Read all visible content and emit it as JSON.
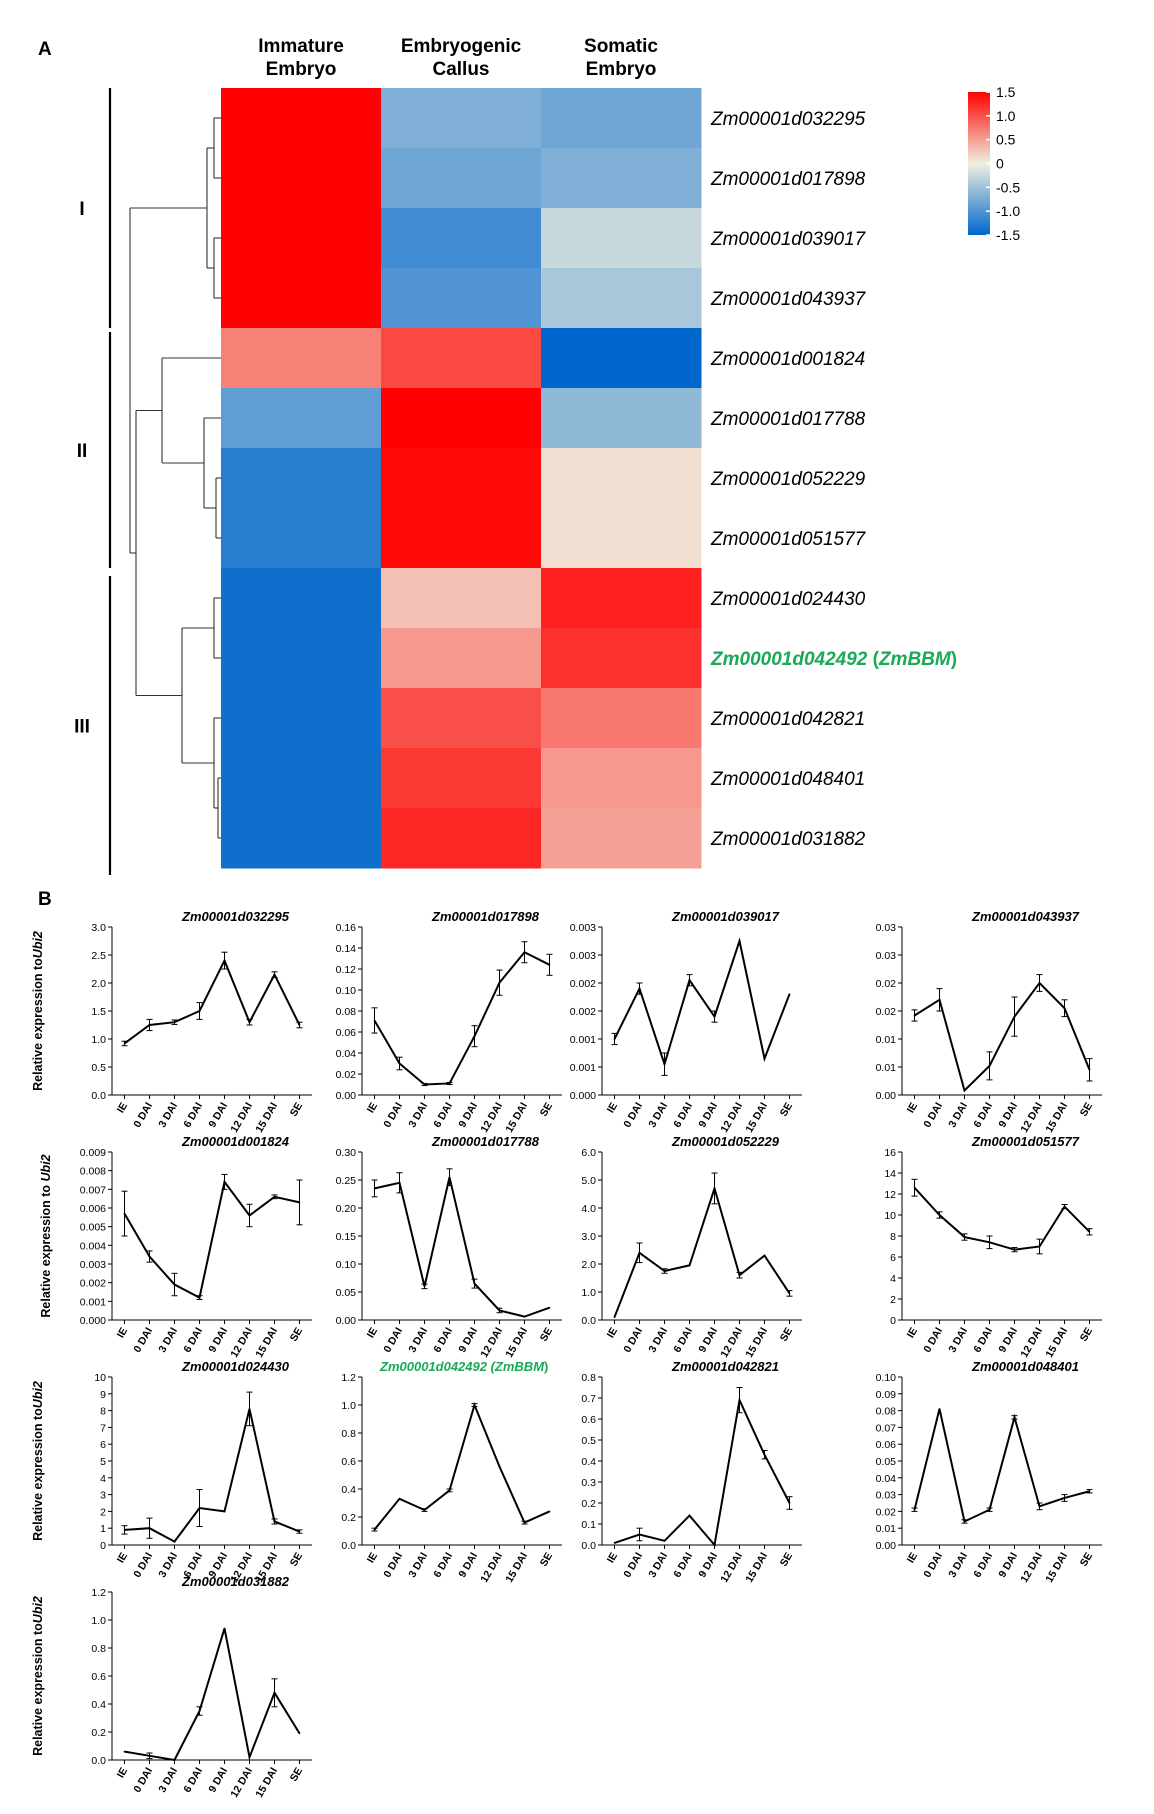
{
  "panel_a_label": "A",
  "panel_b_label": "B",
  "chart_data": [
    {
      "type": "heatmap",
      "columns": [
        "Immature\nEmbryo",
        "Embryogenic\nCallus",
        "Somatic\nEmbryo"
      ],
      "rows": [
        "Zm00001d032295",
        "Zm00001d017898",
        "Zm00001d039017",
        "Zm00001d043937",
        "Zm00001d001824",
        "Zm00001d017788",
        "Zm00001d052229",
        "Zm00001d051577",
        "Zm00001d024430",
        "Zm00001d042492",
        "Zm00001d042821",
        "Zm00001d048401",
        "Zm00001d031882"
      ],
      "highlight_row": {
        "index": 9,
        "suffix_open": " (",
        "suffix_gene": "ZmBBM",
        "suffix_close": ")",
        "color": "#1aaa55"
      },
      "values": [
        [
          1.5,
          -0.7,
          -0.8
        ],
        [
          1.5,
          -0.8,
          -0.7
        ],
        [
          1.5,
          -1.1,
          -0.25
        ],
        [
          1.5,
          -1.0,
          -0.45
        ],
        [
          0.7,
          1.05,
          -1.5
        ],
        [
          -0.9,
          1.5,
          -0.6
        ],
        [
          -1.25,
          1.45,
          0.1
        ],
        [
          -1.25,
          1.45,
          0.1
        ],
        [
          -1.4,
          0.3,
          1.3
        ],
        [
          -1.4,
          0.55,
          1.2
        ],
        [
          -1.4,
          1.0,
          0.75
        ],
        [
          -1.4,
          1.15,
          0.55
        ],
        [
          -1.4,
          1.25,
          0.5
        ]
      ],
      "clusters": [
        "I",
        "II",
        "III"
      ],
      "colorbar": {
        "min": -1.5,
        "max": 1.5,
        "ticks": [
          "1.5",
          "1.0",
          "0.5",
          "0",
          "-0.5",
          "-1.0",
          "-1.5"
        ]
      },
      "colors": {
        "low": "#0066cc",
        "mid": "#f0f0e0",
        "high": "#ff0000"
      }
    },
    {
      "type": "line",
      "x": [
        "IE",
        "0 DAI",
        "3 DAI",
        "6 DAI",
        "9 DAI",
        "12 DAI",
        "15 DAI",
        "SE"
      ],
      "ylabel": "Relative expression to Ubi2",
      "panels": [
        {
          "title": "Zm00001d032295",
          "ylabel": "Relative expression to\nUbi2",
          "yticks": [
            "0.0",
            "0.5",
            "1.0",
            "1.5",
            "2.0",
            "2.5",
            "3.0"
          ],
          "ymax": 3.0,
          "values": [
            0.92,
            1.25,
            1.3,
            1.5,
            2.4,
            1.3,
            2.15,
            1.25
          ],
          "errors": [
            0.04,
            0.1,
            0.04,
            0.15,
            0.15,
            0.05,
            0.05,
            0.05
          ]
        },
        {
          "title": "Zm00001d017898",
          "yticks": [
            "0.00",
            "0.02",
            "0.04",
            "0.06",
            "0.08",
            "0.10",
            "0.12",
            "0.14",
            "0.16"
          ],
          "ymax": 0.16,
          "values": [
            0.071,
            0.03,
            0.01,
            0.011,
            0.056,
            0.107,
            0.136,
            0.124
          ],
          "errors": [
            0.012,
            0.006,
            0.001,
            0.001,
            0.01,
            0.012,
            0.01,
            0.01
          ]
        },
        {
          "title": "Zm00001d039017",
          "yticks": [
            "0.000",
            "0.001",
            "0.001",
            "0.002",
            "0.002",
            "0.003",
            "0.003"
          ],
          "ymax": 0.003,
          "values": [
            0.001,
            0.0019,
            0.00055,
            0.00205,
            0.0014,
            0.00275,
            0.00065,
            0.0018
          ],
          "errors": [
            0.0001,
            0.0001,
            0.0002,
            0.0001,
            0.0001,
            0.0,
            0.0,
            0.0
          ]
        },
        {
          "title": "Zm00001d043937",
          "yticks": [
            "0.00",
            "0.01",
            "0.01",
            "0.02",
            "0.02",
            "0.03",
            "0.03"
          ],
          "ymax": 0.03,
          "values": [
            0.0142,
            0.017,
            0.0008,
            0.0052,
            0.014,
            0.02,
            0.0155,
            0.0045
          ],
          "errors": [
            0.001,
            0.002,
            0.0,
            0.0025,
            0.0035,
            0.0015,
            0.0015,
            0.002
          ]
        },
        {
          "title": "Zm00001d001824",
          "ylabel": "Relative expression to Ubi2",
          "yticks": [
            "0.000",
            "0.001",
            "0.002",
            "0.003",
            "0.004",
            "0.005",
            "0.006",
            "0.007",
            "0.008",
            "0.009"
          ],
          "ymax": 0.009,
          "values": [
            0.0057,
            0.0034,
            0.0019,
            0.0012,
            0.0074,
            0.0056,
            0.0066,
            0.0063
          ],
          "errors": [
            0.0012,
            0.0003,
            0.0006,
            0.0001,
            0.0004,
            0.0006,
            0.0001,
            0.0012
          ]
        },
        {
          "title": "Zm00001d017788",
          "yticks": [
            "0.00",
            "0.05",
            "0.10",
            "0.15",
            "0.20",
            "0.25",
            "0.30"
          ],
          "ymax": 0.3,
          "values": [
            0.235,
            0.245,
            0.06,
            0.255,
            0.065,
            0.017,
            0.006,
            0.022
          ],
          "errors": [
            0.015,
            0.018,
            0.004,
            0.015,
            0.008,
            0.004,
            0.0,
            0.0
          ]
        },
        {
          "title": "Zm00001d052229",
          "yticks": [
            "0.0",
            "1.0",
            "2.0",
            "3.0",
            "4.0",
            "5.0",
            "6.0"
          ],
          "ymax": 6.0,
          "values": [
            0.1,
            2.4,
            1.75,
            1.95,
            4.7,
            1.6,
            2.3,
            0.95
          ],
          "errors": [
            0.0,
            0.35,
            0.08,
            0.0,
            0.55,
            0.1,
            0.0,
            0.1
          ]
        },
        {
          "title": "Zm00001d051577",
          "yticks": [
            "0",
            "2",
            "4",
            "6",
            "8",
            "10",
            "12",
            "14",
            "16"
          ],
          "ymax": 16,
          "values": [
            12.6,
            10.0,
            7.9,
            7.4,
            6.7,
            7.0,
            10.8,
            8.4
          ],
          "errors": [
            0.8,
            0.3,
            0.3,
            0.6,
            0.2,
            0.7,
            0.2,
            0.3
          ]
        },
        {
          "title": "Zm00001d024430",
          "ylabel": "Relative expression to\nUbi2",
          "yticks": [
            "0",
            "1",
            "2",
            "3",
            "4",
            "5",
            "6",
            "7",
            "8",
            "9",
            "10"
          ],
          "ymax": 10,
          "values": [
            0.9,
            1.0,
            0.2,
            2.2,
            2.0,
            8.1,
            1.4,
            0.8
          ],
          "errors": [
            0.25,
            0.6,
            0.0,
            1.1,
            0.0,
            1.0,
            0.15,
            0.1
          ]
        },
        {
          "title_main": "Zm00001d042492 (",
          "title_gene": "ZmBBM",
          "title_close": ")",
          "title_color": "#1aaa55",
          "yticks": [
            "0.0",
            "0.2",
            "0.4",
            "0.6",
            "0.8",
            "1.0",
            "1.2"
          ],
          "ymax": 1.2,
          "values": [
            0.11,
            0.33,
            0.25,
            0.39,
            1.0,
            0.56,
            0.16,
            0.24
          ],
          "errors": [
            0.01,
            0.0,
            0.01,
            0.01,
            0.01,
            0.0,
            0.01,
            0.0
          ]
        },
        {
          "title": "Zm00001d042821",
          "yticks": [
            "0.0",
            "0.1",
            "0.2",
            "0.3",
            "0.4",
            "0.5",
            "0.6",
            "0.7",
            "0.8"
          ],
          "ymax": 0.8,
          "values": [
            0.01,
            0.05,
            0.02,
            0.14,
            0.0,
            0.69,
            0.43,
            0.2
          ],
          "errors": [
            0.0,
            0.03,
            0.0,
            0.0,
            0.0,
            0.06,
            0.02,
            0.03
          ]
        },
        {
          "title": "Zm00001d048401",
          "yticks": [
            "0.00",
            "0.01",
            "0.02",
            "0.03",
            "0.04",
            "0.05",
            "0.06",
            "0.07",
            "0.08",
            "0.09",
            "0.10"
          ],
          "ymax": 0.1,
          "values": [
            0.021,
            0.081,
            0.014,
            0.021,
            0.076,
            0.023,
            0.028,
            0.032
          ],
          "errors": [
            0.001,
            0.0,
            0.001,
            0.001,
            0.001,
            0.002,
            0.002,
            0.001
          ]
        },
        {
          "title": "Zm00001d031882",
          "ylabel": "Relative expression to\nUbi2",
          "yticks": [
            "0.0",
            "0.2",
            "0.4",
            "0.6",
            "0.8",
            "1.0",
            "1.2"
          ],
          "ymax": 1.2,
          "values": [
            0.06,
            0.03,
            0.0,
            0.35,
            0.94,
            0.02,
            0.48,
            0.19
          ],
          "errors": [
            0.0,
            0.02,
            0.0,
            0.03,
            0.0,
            0.0,
            0.1,
            0.0
          ]
        }
      ]
    }
  ]
}
